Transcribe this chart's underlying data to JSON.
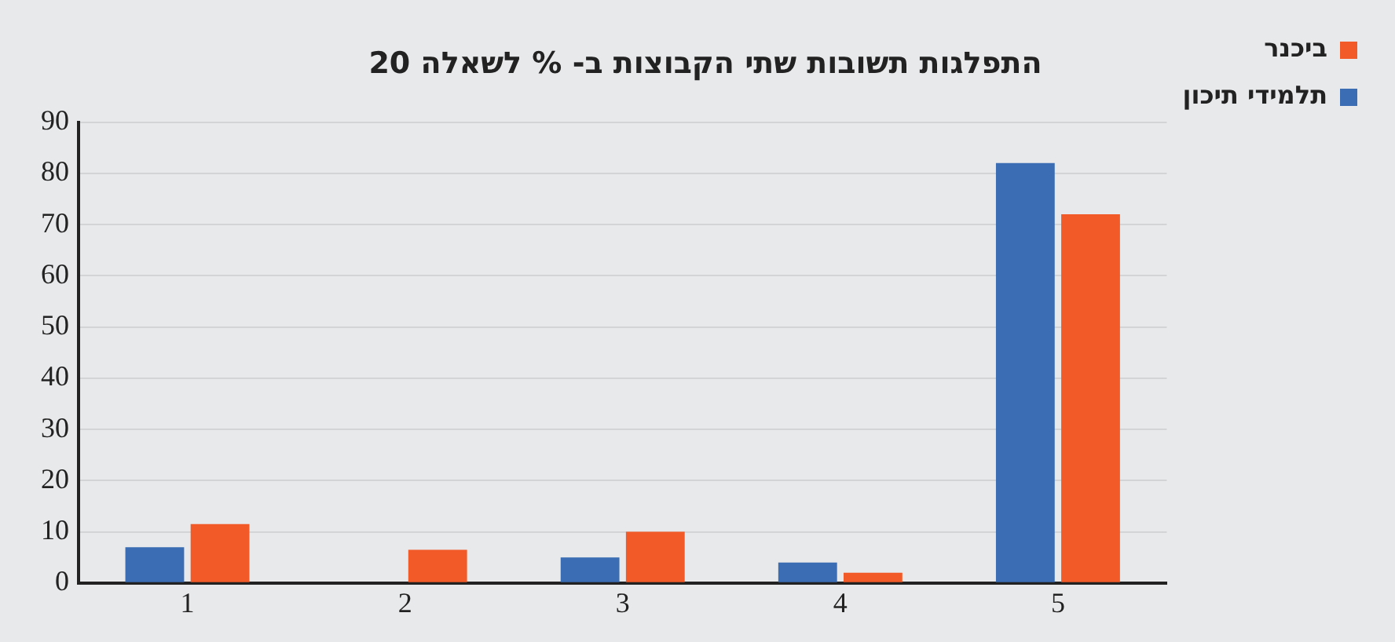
{
  "chart_data": {
    "type": "bar",
    "title": "התפלגות תשובות שתי הקבוצות ב- % לשאלה 20",
    "categories": [
      "1",
      "2",
      "3",
      "4",
      "5"
    ],
    "series": [
      {
        "name": "תלמידי תיכון",
        "color": "#3a6db3",
        "values": [
          7,
          0,
          5,
          4,
          82
        ]
      },
      {
        "name": "ביכנר",
        "color": "#f25a27",
        "values": [
          11.5,
          6.5,
          10,
          2,
          72
        ]
      }
    ],
    "ylim": [
      0,
      90
    ],
    "yticks": [
      0,
      10,
      20,
      30,
      40,
      50,
      60,
      70,
      80,
      90
    ],
    "grid": "y",
    "legend": "right"
  }
}
